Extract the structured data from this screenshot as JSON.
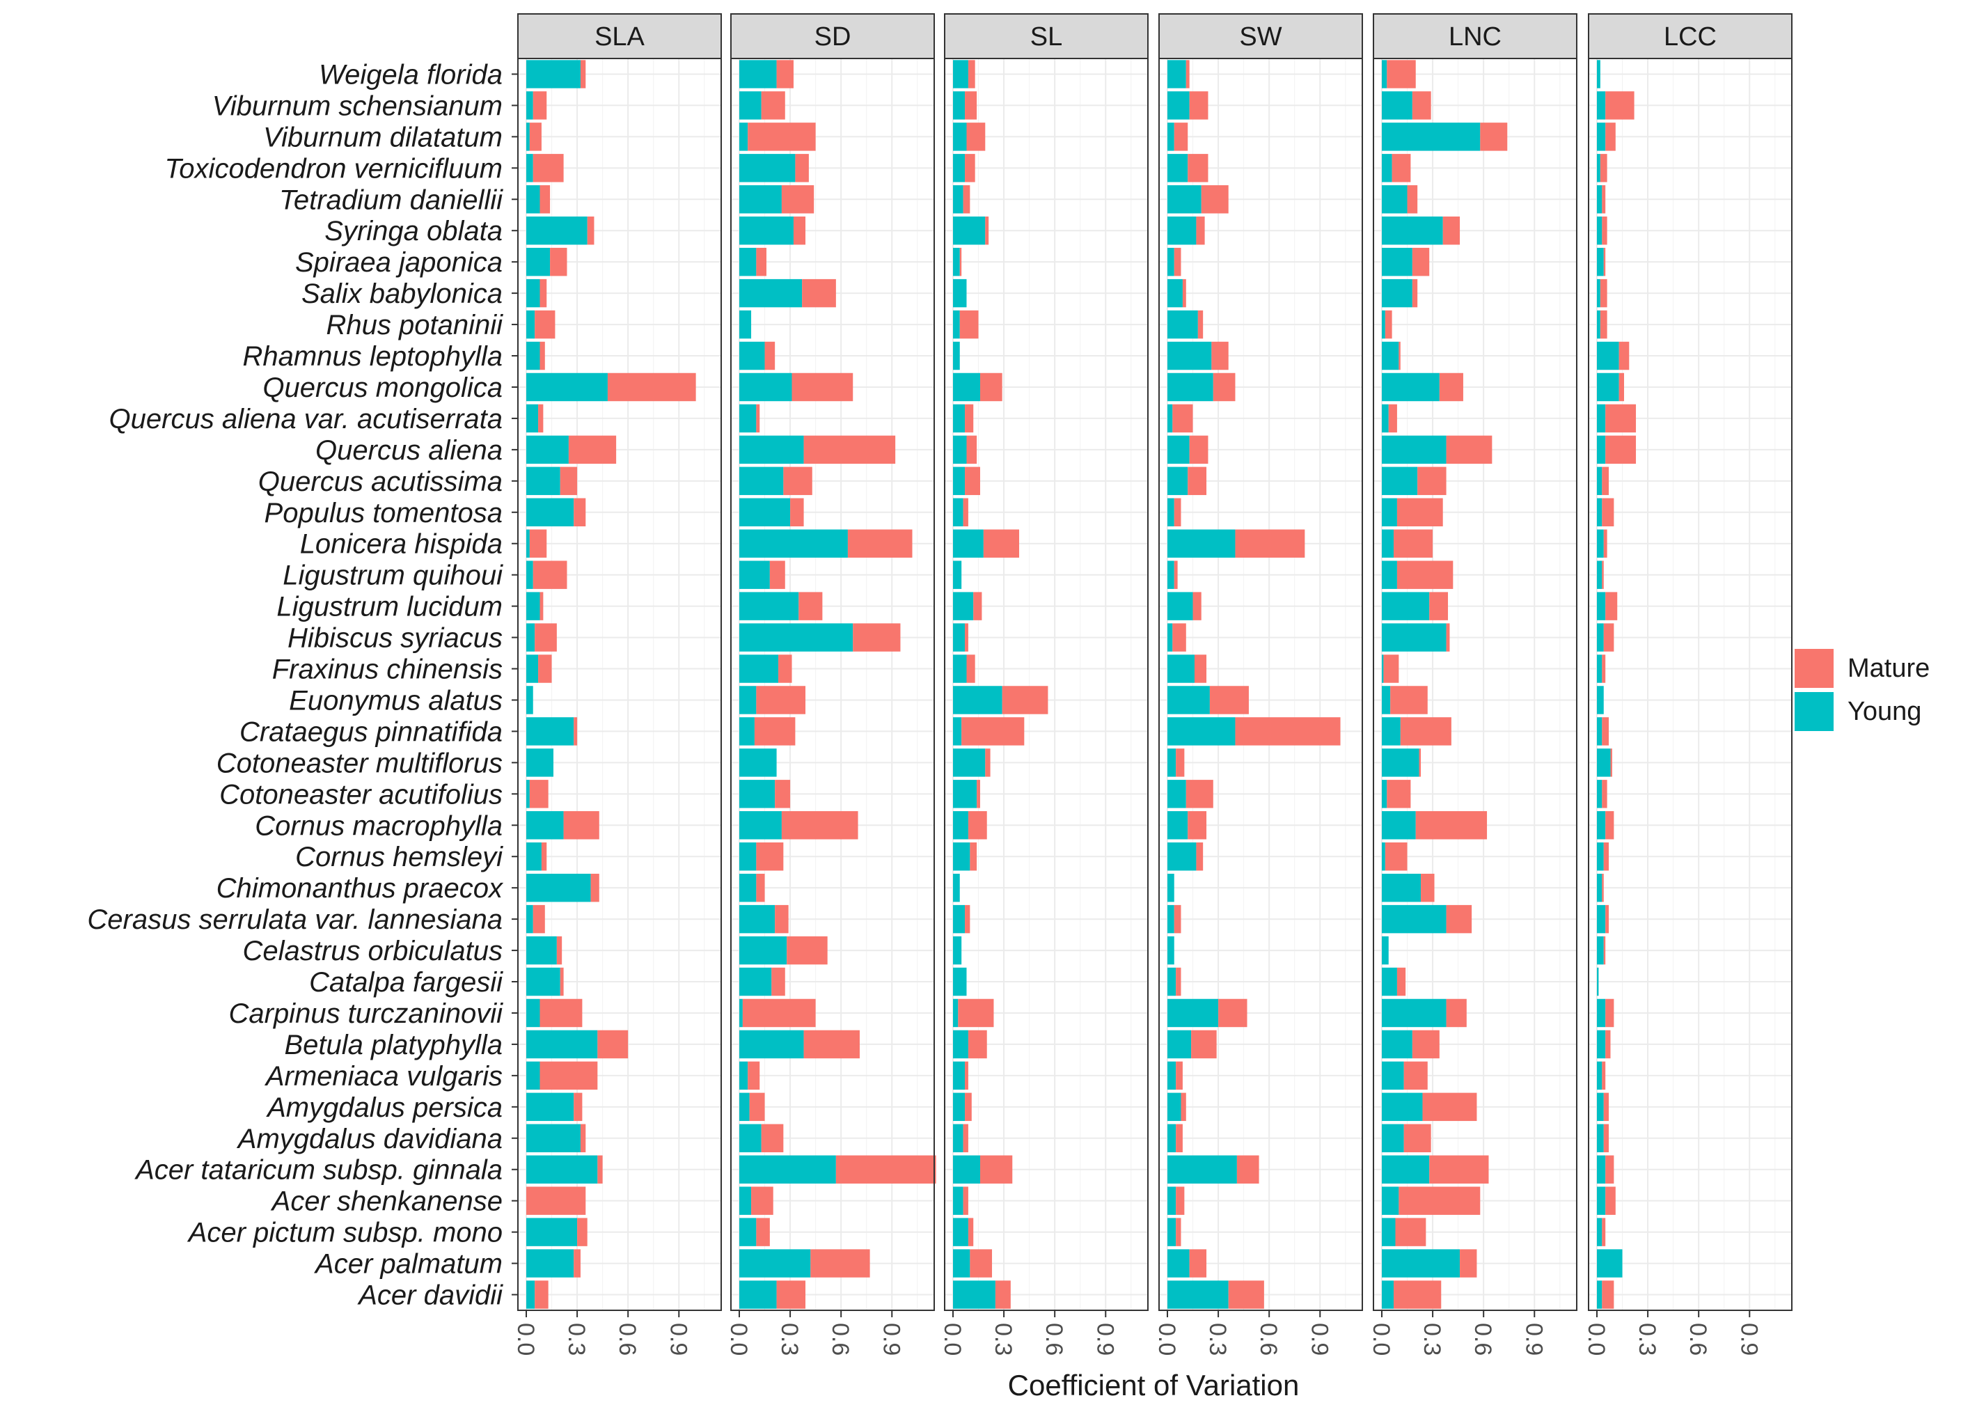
{
  "chart_data": {
    "type": "bar",
    "orientation": "horizontal",
    "stacked": true,
    "xlabel": "Coefficient of Variation",
    "ylabel": "",
    "xlim": [
      0,
      1.1
    ],
    "x_ticks": [
      "0.0",
      "0.3",
      "0.6",
      "0.9"
    ],
    "x_tick_values": [
      0,
      0.3,
      0.6,
      0.9
    ],
    "legend": {
      "position": "right",
      "entries": [
        {
          "name": "Mature",
          "color": "#F8766D"
        },
        {
          "name": "Young",
          "color": "#00BFC4"
        }
      ]
    },
    "categories": [
      "Weigela florida",
      "Viburnum schensianum",
      "Viburnum dilatatum",
      "Toxicodendron vernicifluum",
      "Tetradium daniellii",
      "Syringa oblata",
      "Spiraea japonica",
      "Salix babylonica",
      "Rhus potaninii",
      "Rhamnus leptophylla",
      "Quercus mongolica",
      "Quercus aliena var. acutiserrata",
      "Quercus aliena",
      "Quercus acutissima",
      "Populus tomentosa",
      "Lonicera hispida",
      "Ligustrum quihoui",
      "Ligustrum lucidum",
      "Hibiscus syriacus",
      "Fraxinus chinensis",
      "Euonymus alatus",
      "Crataegus pinnatifida",
      "Cotoneaster multiflorus",
      "Cotoneaster acutifolius",
      "Cornus macrophylla",
      "Cornus hemsleyi",
      "Chimonanthus praecox",
      "Cerasus serrulata var. lannesiana",
      "Celastrus orbiculatus",
      "Catalpa fargesii",
      "Carpinus turczaninovii",
      "Betula platyphylla",
      "Armeniaca vulgaris",
      "Amygdalus persica",
      "Amygdalus davidiana",
      "Acer tataricum subsp. ginnala",
      "Acer shenkanense",
      "Acer pictum subsp. mono",
      "Acer palmatum",
      "Acer davidii"
    ],
    "panels": [
      {
        "title": "SLA",
        "young": [
          0.32,
          0.04,
          0.02,
          0.04,
          0.08,
          0.36,
          0.14,
          0.08,
          0.05,
          0.08,
          0.48,
          0.07,
          0.25,
          0.2,
          0.28,
          0.02,
          0.04,
          0.08,
          0.05,
          0.07,
          0.04,
          0.28,
          0.16,
          0.02,
          0.22,
          0.09,
          0.38,
          0.04,
          0.18,
          0.2,
          0.08,
          0.42,
          0.08,
          0.28,
          0.32,
          0.42,
          0.0,
          0.3,
          0.28,
          0.05
        ],
        "mature": [
          0.03,
          0.08,
          0.07,
          0.18,
          0.06,
          0.04,
          0.1,
          0.04,
          0.12,
          0.03,
          0.52,
          0.03,
          0.28,
          0.1,
          0.07,
          0.1,
          0.2,
          0.02,
          0.13,
          0.08,
          0.0,
          0.02,
          0.0,
          0.11,
          0.21,
          0.03,
          0.05,
          0.07,
          0.03,
          0.02,
          0.25,
          0.18,
          0.34,
          0.05,
          0.03,
          0.03,
          0.35,
          0.06,
          0.04,
          0.08
        ]
      },
      {
        "title": "SD",
        "young": [
          0.22,
          0.13,
          0.05,
          0.33,
          0.25,
          0.32,
          0.1,
          0.37,
          0.07,
          0.15,
          0.31,
          0.1,
          0.38,
          0.26,
          0.3,
          0.64,
          0.18,
          0.35,
          0.67,
          0.23,
          0.1,
          0.09,
          0.22,
          0.21,
          0.25,
          0.1,
          0.1,
          0.21,
          0.28,
          0.19,
          0.02,
          0.38,
          0.05,
          0.06,
          0.13,
          0.57,
          0.07,
          0.1,
          0.42,
          0.22
        ],
        "mature": [
          0.1,
          0.14,
          0.4,
          0.08,
          0.19,
          0.07,
          0.06,
          0.2,
          0.0,
          0.06,
          0.36,
          0.02,
          0.54,
          0.17,
          0.08,
          0.38,
          0.09,
          0.14,
          0.28,
          0.08,
          0.29,
          0.24,
          0.0,
          0.09,
          0.45,
          0.16,
          0.05,
          0.08,
          0.24,
          0.08,
          0.43,
          0.33,
          0.07,
          0.09,
          0.13,
          0.59,
          0.13,
          0.08,
          0.35,
          0.17
        ]
      },
      {
        "title": "SL",
        "young": [
          0.09,
          0.07,
          0.08,
          0.07,
          0.06,
          0.19,
          0.04,
          0.08,
          0.04,
          0.04,
          0.16,
          0.07,
          0.08,
          0.07,
          0.06,
          0.18,
          0.05,
          0.12,
          0.07,
          0.08,
          0.29,
          0.05,
          0.19,
          0.14,
          0.09,
          0.1,
          0.04,
          0.07,
          0.05,
          0.08,
          0.03,
          0.09,
          0.07,
          0.07,
          0.06,
          0.16,
          0.06,
          0.09,
          0.1,
          0.25
        ],
        "mature": [
          0.04,
          0.07,
          0.11,
          0.06,
          0.04,
          0.02,
          0.01,
          0.0,
          0.11,
          0.0,
          0.13,
          0.05,
          0.06,
          0.09,
          0.03,
          0.21,
          0.0,
          0.05,
          0.02,
          0.05,
          0.27,
          0.37,
          0.03,
          0.02,
          0.11,
          0.04,
          0.0,
          0.03,
          0.0,
          0.0,
          0.21,
          0.11,
          0.02,
          0.04,
          0.03,
          0.19,
          0.03,
          0.03,
          0.13,
          0.09
        ]
      },
      {
        "title": "SW",
        "young": [
          0.11,
          0.13,
          0.04,
          0.12,
          0.2,
          0.17,
          0.04,
          0.09,
          0.18,
          0.26,
          0.27,
          0.03,
          0.13,
          0.12,
          0.04,
          0.4,
          0.04,
          0.15,
          0.03,
          0.16,
          0.25,
          0.4,
          0.05,
          0.11,
          0.12,
          0.17,
          0.04,
          0.04,
          0.04,
          0.05,
          0.3,
          0.14,
          0.05,
          0.08,
          0.05,
          0.41,
          0.05,
          0.05,
          0.13,
          0.36
        ],
        "mature": [
          0.02,
          0.11,
          0.08,
          0.12,
          0.16,
          0.05,
          0.04,
          0.02,
          0.03,
          0.1,
          0.13,
          0.12,
          0.11,
          0.11,
          0.04,
          0.41,
          0.02,
          0.05,
          0.08,
          0.07,
          0.23,
          0.62,
          0.05,
          0.16,
          0.11,
          0.04,
          0.0,
          0.04,
          0.0,
          0.03,
          0.17,
          0.15,
          0.04,
          0.03,
          0.04,
          0.13,
          0.05,
          0.03,
          0.1,
          0.21
        ]
      },
      {
        "title": "LNC",
        "young": [
          0.03,
          0.18,
          0.58,
          0.06,
          0.15,
          0.36,
          0.18,
          0.18,
          0.02,
          0.1,
          0.34,
          0.04,
          0.38,
          0.21,
          0.09,
          0.07,
          0.09,
          0.28,
          0.38,
          0.01,
          0.05,
          0.11,
          0.22,
          0.03,
          0.2,
          0.02,
          0.23,
          0.38,
          0.04,
          0.09,
          0.38,
          0.18,
          0.13,
          0.24,
          0.13,
          0.28,
          0.1,
          0.08,
          0.46,
          0.07
        ],
        "mature": [
          0.17,
          0.11,
          0.16,
          0.11,
          0.06,
          0.1,
          0.1,
          0.03,
          0.04,
          0.01,
          0.14,
          0.05,
          0.27,
          0.17,
          0.27,
          0.23,
          0.33,
          0.11,
          0.02,
          0.09,
          0.22,
          0.3,
          0.01,
          0.14,
          0.42,
          0.13,
          0.08,
          0.15,
          0.0,
          0.05,
          0.12,
          0.16,
          0.14,
          0.32,
          0.16,
          0.35,
          0.48,
          0.18,
          0.1,
          0.28
        ]
      },
      {
        "title": "LCC",
        "young": [
          0.02,
          0.05,
          0.05,
          0.02,
          0.03,
          0.03,
          0.04,
          0.02,
          0.02,
          0.13,
          0.13,
          0.05,
          0.05,
          0.03,
          0.03,
          0.04,
          0.03,
          0.05,
          0.04,
          0.03,
          0.04,
          0.03,
          0.08,
          0.03,
          0.05,
          0.04,
          0.03,
          0.05,
          0.04,
          0.01,
          0.05,
          0.05,
          0.03,
          0.04,
          0.04,
          0.05,
          0.05,
          0.03,
          0.15,
          0.03
        ],
        "mature": [
          0.0,
          0.17,
          0.06,
          0.04,
          0.02,
          0.03,
          0.01,
          0.04,
          0.04,
          0.06,
          0.03,
          0.18,
          0.18,
          0.04,
          0.07,
          0.02,
          0.01,
          0.07,
          0.06,
          0.02,
          0.0,
          0.04,
          0.01,
          0.03,
          0.05,
          0.03,
          0.01,
          0.02,
          0.01,
          0.0,
          0.05,
          0.03,
          0.02,
          0.03,
          0.03,
          0.05,
          0.06,
          0.02,
          0.0,
          0.07
        ]
      }
    ]
  }
}
